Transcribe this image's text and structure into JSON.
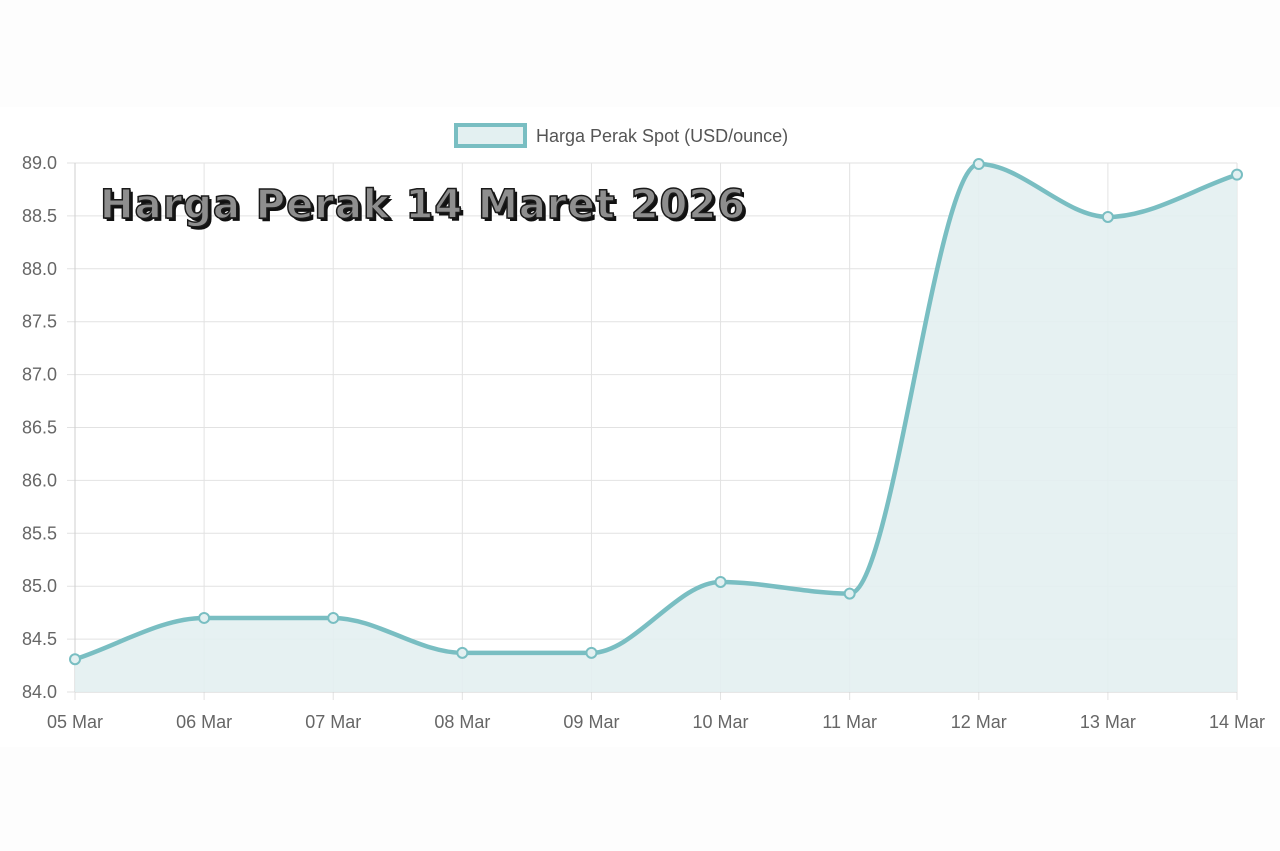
{
  "overlay_title": "Harga Perak 14 Maret 2026",
  "chart_data": {
    "type": "line",
    "title": "",
    "xlabel": "",
    "ylabel": "",
    "categories": [
      "05 Mar",
      "06 Mar",
      "07 Mar",
      "08 Mar",
      "09 Mar",
      "10 Mar",
      "11 Mar",
      "12 Mar",
      "13 Mar",
      "14 Mar"
    ],
    "series": [
      {
        "name": "Harga Perak Spot (USD/ounce)",
        "values": [
          84.31,
          84.7,
          84.7,
          84.37,
          84.37,
          85.04,
          84.93,
          88.99,
          88.49,
          88.89
        ]
      }
    ],
    "ylim": [
      84.0,
      89.0
    ],
    "yticks": [
      "84.0",
      "84.5",
      "85.0",
      "85.5",
      "86.0",
      "86.5",
      "87.0",
      "87.5",
      "88.0",
      "88.5",
      "89.0"
    ],
    "grid": true,
    "legend_position": "top-center",
    "fill": true,
    "smooth": true,
    "colors": {
      "line": "#79bec2",
      "fill": "#e3f0f1",
      "grid": "#e2e2e2",
      "text": "#666666"
    }
  }
}
